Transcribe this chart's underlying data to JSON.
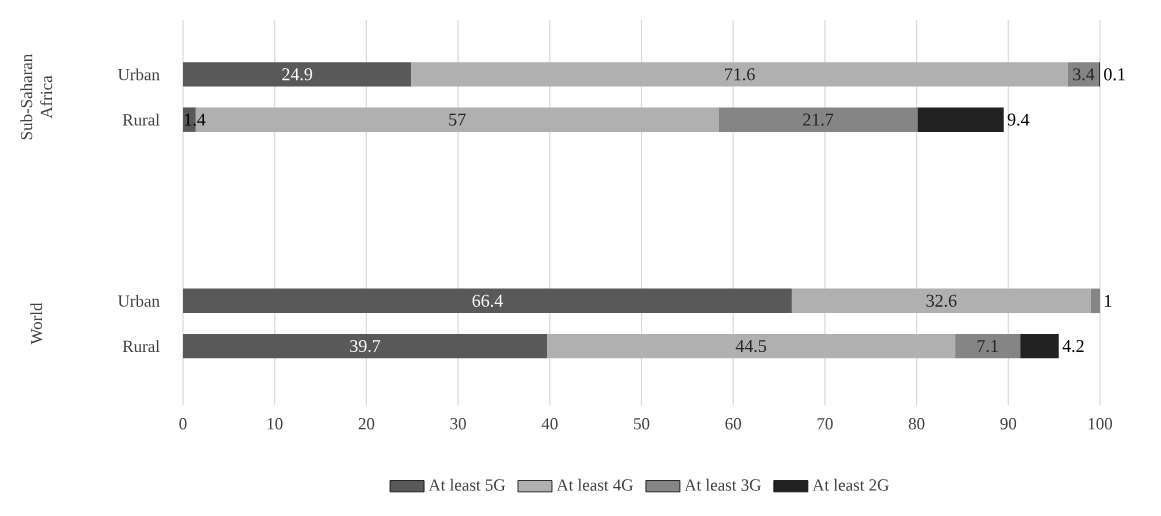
{
  "chart_data": {
    "type": "bar",
    "orientation": "horizontal",
    "stacked": true,
    "categories": [
      "Urban",
      "Rural",
      null,
      null,
      null,
      "Urban",
      "Rural"
    ],
    "series": [
      {
        "name": "At least 5G",
        "color": "#595959",
        "values": [
          24.9,
          1.4,
          null,
          null,
          null,
          66.4,
          39.7
        ]
      },
      {
        "name": "At least 4G",
        "color": "#b0b0b0",
        "values": [
          71.6,
          57,
          null,
          null,
          null,
          32.6,
          44.5
        ]
      },
      {
        "name": "At least 3G",
        "color": "#858585",
        "values": [
          3.4,
          21.7,
          null,
          null,
          null,
          1,
          7.1
        ]
      },
      {
        "name": "At least 2G",
        "color": "#222222",
        "values": [
          0.1,
          9.4,
          null,
          null,
          null,
          null,
          4.2
        ]
      }
    ],
    "annotations": [
      "Sub-Saharan Africa",
      "World"
    ],
    "xlim": [
      0,
      100
    ],
    "xticks": [
      0,
      10,
      20,
      30,
      40,
      50,
      60,
      70,
      80,
      90,
      100
    ],
    "grid": "x",
    "legend": "bottom",
    "data_labels": true
  }
}
